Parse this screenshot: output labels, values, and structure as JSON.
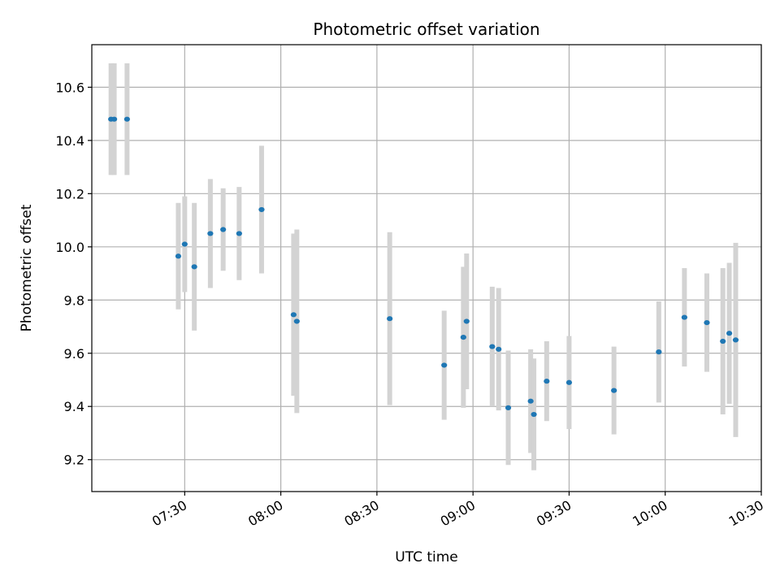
{
  "chart_data": {
    "type": "scatter",
    "title": "Photometric offset variation",
    "xlabel": "UTC time",
    "ylabel": "Photometric offset",
    "x_unit": "UTC time (HH:MM)",
    "xlim": [
      "07:01",
      "10:30"
    ],
    "ylim": [
      9.08,
      10.76
    ],
    "x_ticks": [
      "07:30",
      "08:00",
      "08:30",
      "09:00",
      "09:30",
      "10:00",
      "10:30"
    ],
    "y_ticks": [
      "9.2",
      "9.4",
      "9.6",
      "9.8",
      "10.0",
      "10.2",
      "10.4",
      "10.6"
    ],
    "grid": true,
    "errorbar_color": "#d3d3d3",
    "point_color": "#1f77b4",
    "points": [
      {
        "t": "07:07",
        "y": 10.48,
        "err": 0.21
      },
      {
        "t": "07:08",
        "y": 10.48,
        "err": 0.21
      },
      {
        "t": "07:12",
        "y": 10.48,
        "err": 0.21
      },
      {
        "t": "07:28",
        "y": 9.965,
        "err": 0.2
      },
      {
        "t": "07:30",
        "y": 10.01,
        "err": 0.18
      },
      {
        "t": "07:33",
        "y": 9.925,
        "err": 0.24
      },
      {
        "t": "07:38",
        "y": 10.05,
        "err": 0.205
      },
      {
        "t": "07:42",
        "y": 10.065,
        "err": 0.155
      },
      {
        "t": "07:47",
        "y": 10.05,
        "err": 0.175
      },
      {
        "t": "07:54",
        "y": 10.14,
        "err": 0.24
      },
      {
        "t": "08:04",
        "y": 9.745,
        "err": 0.305
      },
      {
        "t": "08:05",
        "y": 9.72,
        "err": 0.345
      },
      {
        "t": "08:34",
        "y": 9.73,
        "err": 0.325
      },
      {
        "t": "08:51",
        "y": 9.555,
        "err": 0.205
      },
      {
        "t": "08:57",
        "y": 9.66,
        "err": 0.265
      },
      {
        "t": "08:58",
        "y": 9.72,
        "err": 0.255
      },
      {
        "t": "09:06",
        "y": 9.625,
        "err": 0.225
      },
      {
        "t": "09:08",
        "y": 9.615,
        "err": 0.23
      },
      {
        "t": "09:11",
        "y": 9.395,
        "err": 0.215
      },
      {
        "t": "09:18",
        "y": 9.42,
        "err": 0.195
      },
      {
        "t": "09:19",
        "y": 9.37,
        "err": 0.21
      },
      {
        "t": "09:23",
        "y": 9.495,
        "err": 0.15
      },
      {
        "t": "09:30",
        "y": 9.49,
        "err": 0.175
      },
      {
        "t": "09:44",
        "y": 9.46,
        "err": 0.165
      },
      {
        "t": "09:58",
        "y": 9.605,
        "err": 0.19
      },
      {
        "t": "10:06",
        "y": 9.735,
        "err": 0.185
      },
      {
        "t": "10:13",
        "y": 9.715,
        "err": 0.185
      },
      {
        "t": "10:18",
        "y": 9.645,
        "err": 0.275
      },
      {
        "t": "10:20",
        "y": 9.675,
        "err": 0.265
      },
      {
        "t": "10:22",
        "y": 9.65,
        "err": 0.365
      }
    ]
  }
}
